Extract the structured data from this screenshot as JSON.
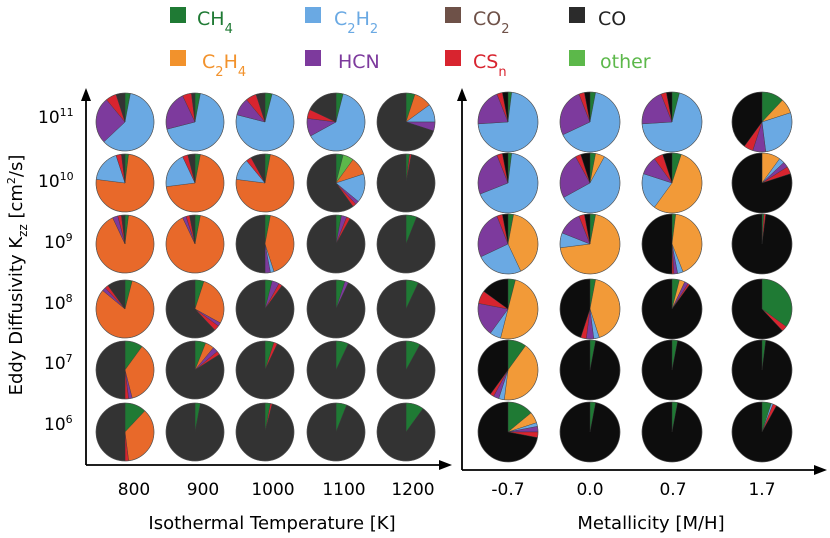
{
  "chart_data": {
    "type": "pie",
    "legend_placement": "top",
    "species": [
      {
        "key": "ch4",
        "label_main": "CH",
        "label_sub": "4",
        "label_tail": "",
        "label_sub2": "",
        "color": "#1f7a34",
        "text_color": "#1f7a34"
      },
      {
        "key": "c2h2",
        "label_main": "C",
        "label_sub": "2",
        "label_tail": "H",
        "label_sub2": "2",
        "color": "#6aa9e3",
        "text_color": "#6aa9e3"
      },
      {
        "key": "co2",
        "label_main": "CO",
        "label_sub": "2",
        "label_tail": "",
        "label_sub2": "",
        "color": "#6e5148",
        "text_color": "#6e5148"
      },
      {
        "key": "co",
        "label_main": "CO",
        "label_sub": "",
        "label_tail": "",
        "label_sub2": "",
        "color": "#2b2b2b",
        "text_color": "#222222"
      },
      {
        "key": "c2h4",
        "label_main": "C",
        "label_sub": "2",
        "label_tail": "H",
        "label_sub2": "4",
        "color": "#f2922c",
        "text_color": "#f2922c"
      },
      {
        "key": "hcn",
        "label_main": "HCN",
        "label_sub": "",
        "label_tail": "",
        "label_sub2": "",
        "color": "#7d3a9d",
        "text_color": "#7d3a9d"
      },
      {
        "key": "csn",
        "label_main": "CS",
        "label_sub": "n",
        "label_tail": "",
        "label_sub2": "",
        "color": "#d8242f",
        "text_color": "#d8242f"
      },
      {
        "key": "other",
        "label_main": "other",
        "label_sub": "",
        "label_tail": "",
        "label_sub2": "",
        "color": "#5cb84a",
        "text_color": "#5cb84a"
      }
    ],
    "panels": [
      {
        "name": "temperature",
        "xlabel": "Isothermal Temperature [K]",
        "columns": [
          "800",
          "900",
          "1000",
          "1100",
          "1200"
        ],
        "co_color": "#333333",
        "c2h4_color": "#e8692a",
        "pies": [
          [
            {
              "co": 5,
              "ch4": 3,
              "csn": 6,
              "hcn": 26,
              "c2h2": 60
            },
            {
              "co": 2,
              "ch4": 3,
              "csn": 5,
              "hcn": 22,
              "c2h2": 68
            },
            {
              "co": 5,
              "ch4": 4,
              "csn": 6,
              "hcn": 10,
              "c2h2": 75
            },
            {
              "co": 18,
              "ch4": 4,
              "csn": 5,
              "hcn": 10,
              "c2h2": 63
            },
            {
              "co": 70,
              "c2h4": 10,
              "ch4": 5,
              "hcn": 5,
              "c2h2": 10
            }
          ],
          [
            {
              "co": 2,
              "ch4": 2,
              "csn": 3,
              "c2h2": 18,
              "c2h4": 75
            },
            {
              "co": 4,
              "ch4": 3,
              "csn": 3,
              "c2h2": 20,
              "c2h4": 70
            },
            {
              "co": 8,
              "ch4": 3,
              "csn": 3,
              "c2h2": 12,
              "c2h4": 74
            },
            {
              "co": 60,
              "c2h4": 10,
              "ch4": 4,
              "c2h2": 16,
              "hcn": 2,
              "csn": 2,
              "other": 6
            },
            {
              "co": 97,
              "ch4": 2,
              "csn": 1
            }
          ],
          [
            {
              "co": 2,
              "ch4": 2,
              "csn": 2,
              "hcn": 3,
              "c2h4": 91
            },
            {
              "co": 3,
              "ch4": 3,
              "csn": 2,
              "hcn": 2,
              "c2h4": 90
            },
            {
              "co": 50,
              "ch4": 3,
              "c2h2": 2,
              "hcn": 3,
              "c2h4": 42
            },
            {
              "co": 92,
              "ch4": 3,
              "hcn": 3,
              "csn": 2
            },
            {
              "co": 94,
              "ch4": 6
            }
          ],
          [
            {
              "co": 10,
              "ch4": 4,
              "csn": 2,
              "hcn": 2,
              "c2h4": 82
            },
            {
              "co": 62,
              "ch4": 5,
              "csn": 3,
              "hcn": 2,
              "c2h4": 28
            },
            {
              "co": 90,
              "ch4": 4,
              "hcn": 4,
              "csn": 2
            },
            {
              "co": 93,
              "ch4": 5,
              "hcn": 2
            },
            {
              "co": 93,
              "ch4": 7
            }
          ],
          [
            {
              "co": 50,
              "ch4": 10,
              "c2h4": 36,
              "csn": 2,
              "hcn": 2
            },
            {
              "co": 84,
              "ch4": 6,
              "c2h4": 5,
              "hcn": 3,
              "csn": 2
            },
            {
              "co": 93,
              "ch4": 5,
              "csn": 2
            },
            {
              "co": 93,
              "ch4": 7
            },
            {
              "co": 92,
              "ch4": 8
            }
          ],
          [
            {
              "co": 50,
              "ch4": 12,
              "c2h4": 36,
              "csn": 2
            },
            {
              "co": 97,
              "ch4": 3
            },
            {
              "co": 96,
              "ch4": 3,
              "csn": 1
            },
            {
              "co": 94,
              "ch4": 6
            },
            {
              "co": 90,
              "ch4": 10
            }
          ]
        ]
      },
      {
        "name": "metallicity",
        "xlabel": "Metallicity [M/H]",
        "columns": [
          "-0.7",
          "0.0",
          "0.7",
          "1.7"
        ],
        "co_color": "#0d0d0d",
        "c2h4_color": "#f29a38",
        "pies": [
          [
            {
              "co": 3,
              "ch4": 2,
              "csn": 3,
              "hcn": 20,
              "c2h2": 72
            },
            {
              "co": 3,
              "ch4": 3,
              "csn": 3,
              "hcn": 26,
              "c2h2": 65
            },
            {
              "co": 3,
              "ch4": 4,
              "csn": 3,
              "hcn": 20,
              "c2h2": 70
            },
            {
              "co": 40,
              "ch4": 12,
              "c2h4": 8,
              "c2h2": 28,
              "hcn": 7,
              "csn": 5
            }
          ],
          [
            {
              "co": 3,
              "ch4": 2,
              "csn": 3,
              "hcn": 25,
              "c2h2": 67
            },
            {
              "co": 5,
              "c2h4": 5,
              "ch4": 3,
              "csn": 3,
              "hcn": 25,
              "c2h2": 59
            },
            {
              "co": 5,
              "ch4": 5,
              "c2h4": 55,
              "c2h2": 20,
              "hcn": 10,
              "csn": 5
            },
            {
              "co": 80,
              "c2h4": 10,
              "c2h2": 3,
              "hcn": 3,
              "csn": 4
            }
          ],
          [
            {
              "co": 3,
              "ch4": 3,
              "csn": 3,
              "c2h4": 40,
              "c2h2": 25,
              "hcn": 26
            },
            {
              "co": 3,
              "ch4": 3,
              "csn": 3,
              "c2h4": 70,
              "c2h2": 8,
              "hcn": 13
            },
            {
              "co": 50,
              "ch4": 2,
              "c2h4": 42,
              "c2h2": 3,
              "hcn": 2,
              "csn": 1
            },
            {
              "co": 98,
              "csn": 1,
              "ch4": 1
            }
          ],
          [
            {
              "co": 15,
              "ch4": 4,
              "c2h4": 50,
              "c2h2": 6,
              "hcn": 18,
              "csn": 7
            },
            {
              "co": 45,
              "ch4": 3,
              "c2h4": 42,
              "c2h2": 3,
              "hcn": 4,
              "csn": 3
            },
            {
              "co": 90,
              "ch4": 4,
              "c2h4": 3,
              "hcn": 2,
              "csn": 1
            },
            {
              "co": 62,
              "ch4": 35,
              "csn": 3
            }
          ],
          [
            {
              "co": 40,
              "ch4": 10,
              "c2h4": 42,
              "c2h2": 3,
              "hcn": 3,
              "csn": 2
            },
            {
              "co": 97,
              "ch4": 3
            },
            {
              "co": 97,
              "ch4": 3
            },
            {
              "co": 98,
              "ch4": 2
            }
          ],
          [
            {
              "co": 72,
              "ch4": 14,
              "c2h4": 6,
              "c2h2": 2,
              "hcn": 3,
              "csn": 3
            },
            {
              "co": 97,
              "ch4": 3
            },
            {
              "co": 97,
              "ch4": 3
            },
            {
              "co": 92,
              "ch4": 5,
              "c2h2": 1,
              "csn": 2
            }
          ]
        ]
      }
    ],
    "y_axis": {
      "title_main": "Eddy Diffusivity K",
      "title_sub": "zz",
      "title_unit_open": " [cm",
      "title_unit_exp": "2",
      "title_unit_close": "/s]",
      "ticks": [
        {
          "base": "10",
          "exp": "11"
        },
        {
          "base": "10",
          "exp": "10"
        },
        {
          "base": "10",
          "exp": "9"
        },
        {
          "base": "10",
          "exp": "8"
        },
        {
          "base": "10",
          "exp": "7"
        },
        {
          "base": "10",
          "exp": "6"
        }
      ]
    }
  }
}
